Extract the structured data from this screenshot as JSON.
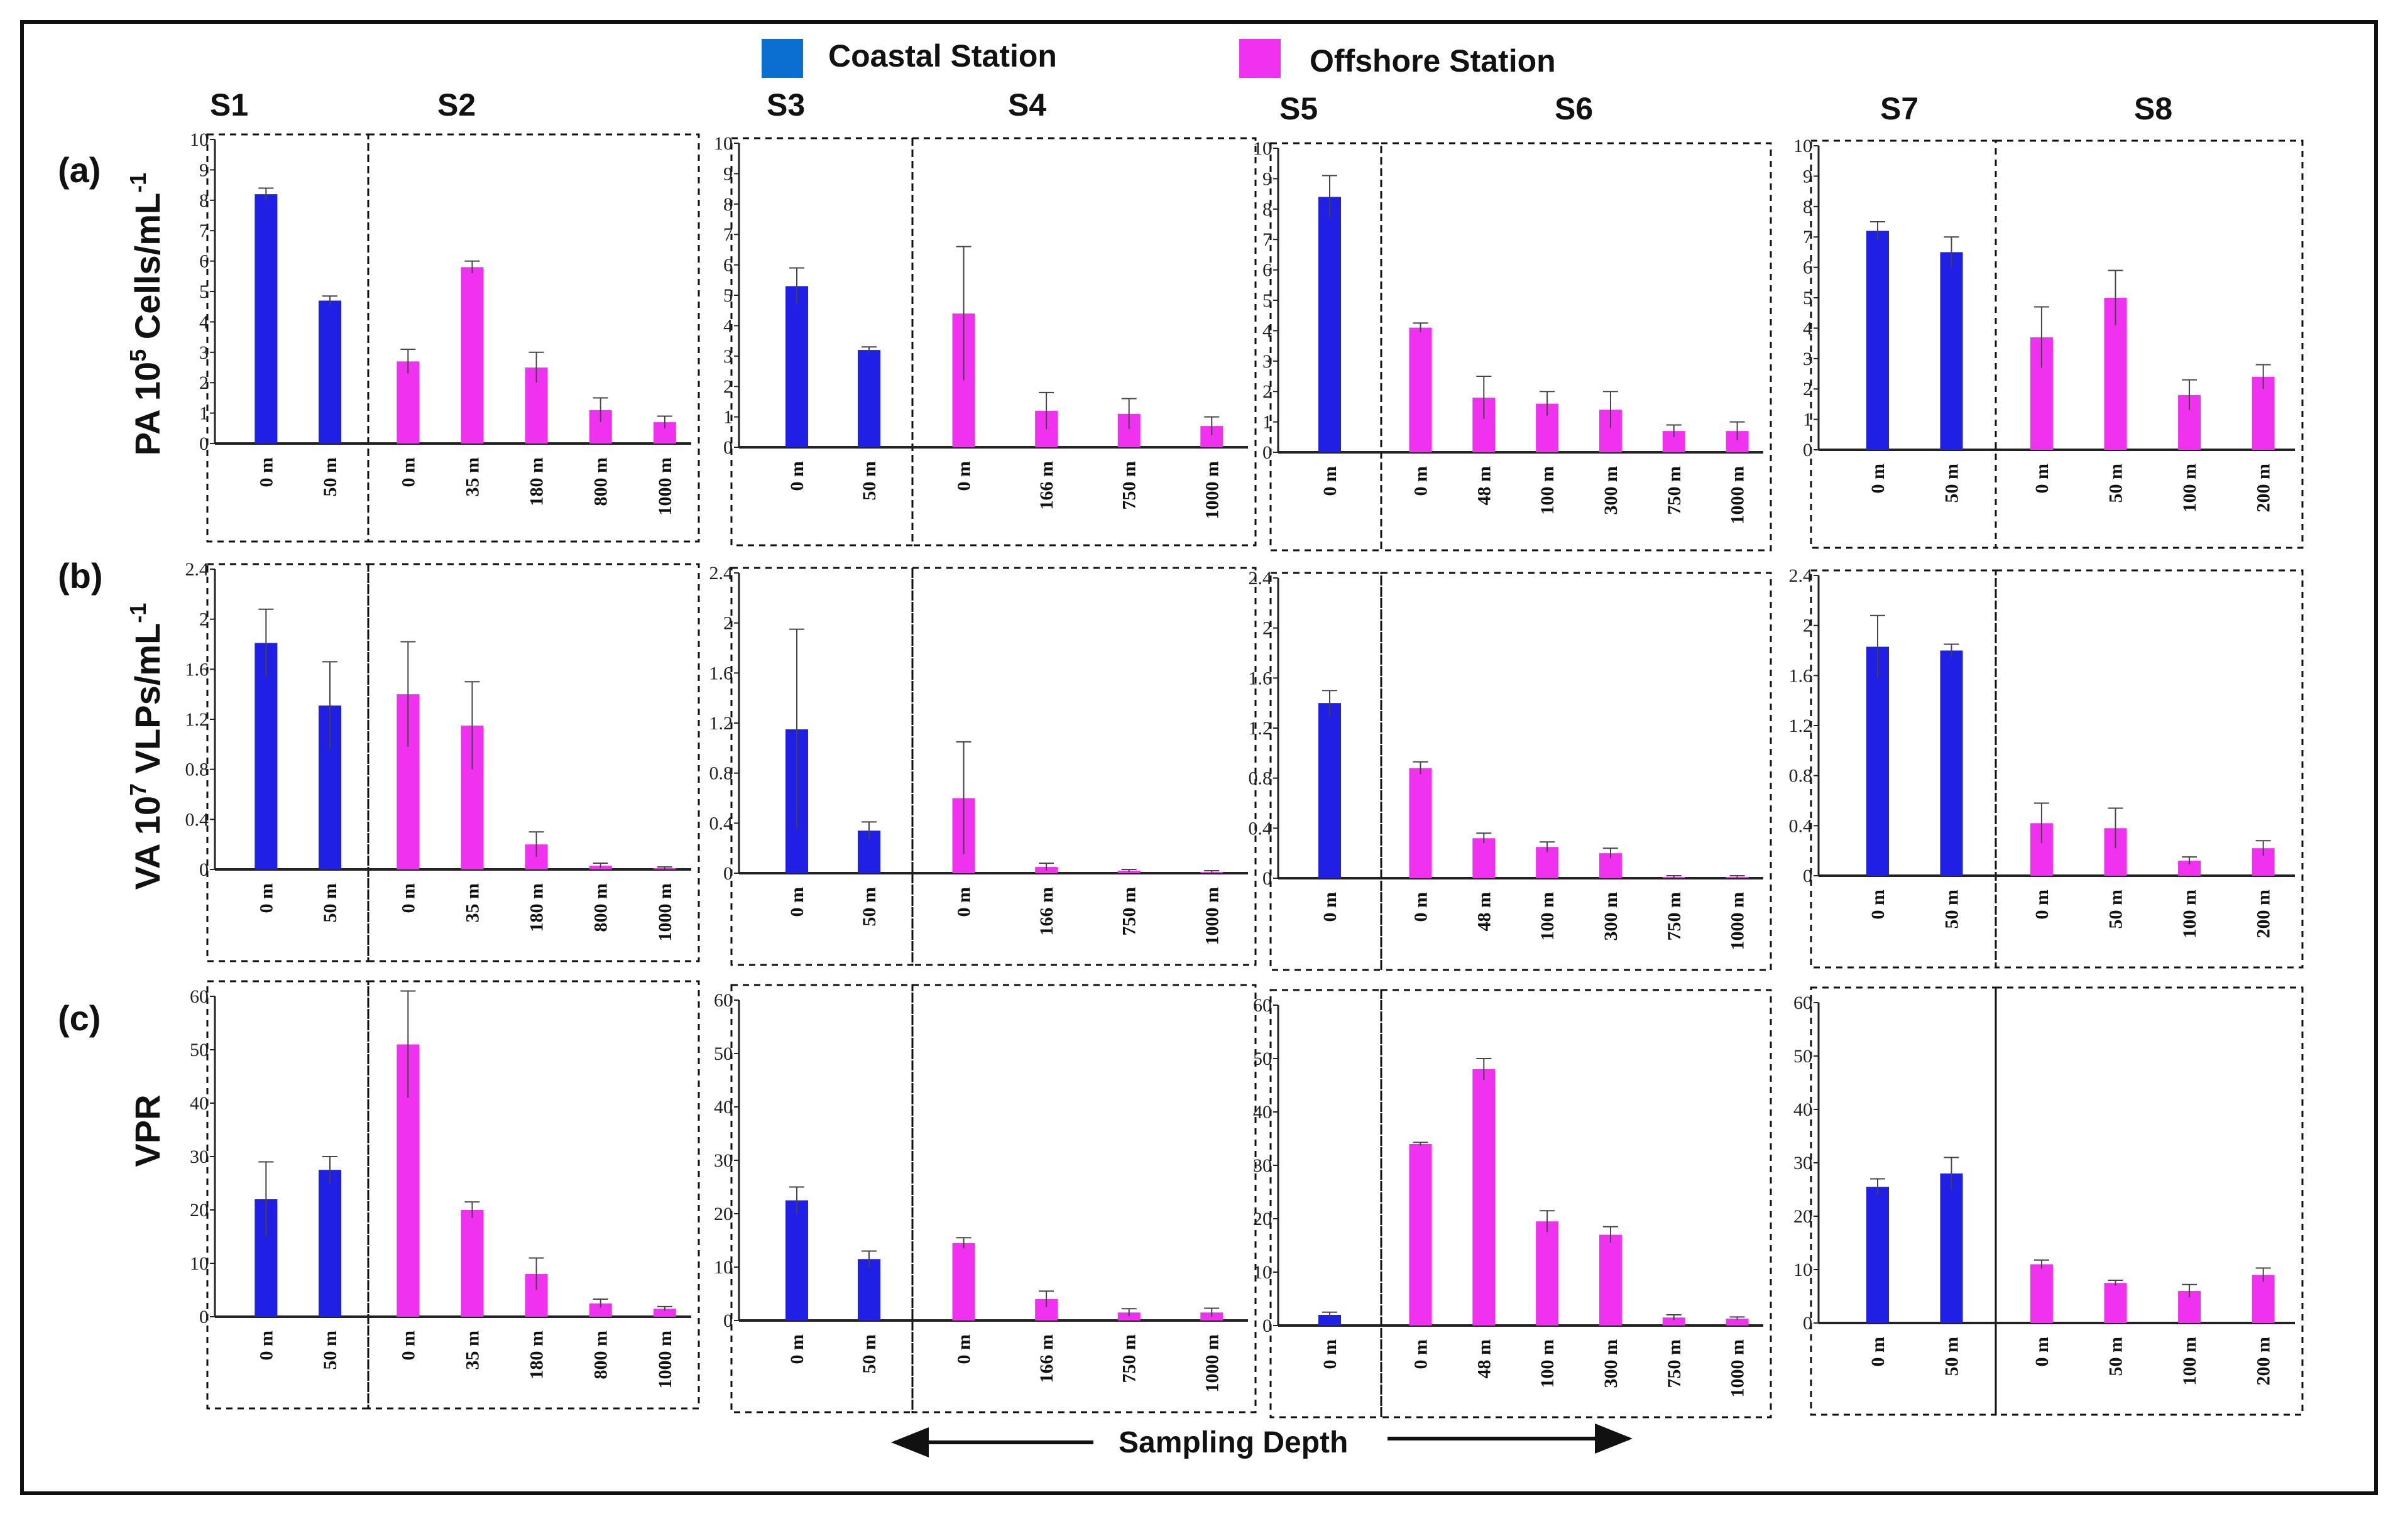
{
  "legend": [
    {
      "label": "Coastal Station",
      "color": "#0a6fd1"
    },
    {
      "label": "Offshore Station",
      "color": "#f032f0"
    }
  ],
  "colors": {
    "coastal_bar": "#1f1fe6",
    "offshore_bar": "#f032f0",
    "frame": "#111111"
  },
  "stations": [
    "S1",
    "S2",
    "S3",
    "S4",
    "S5",
    "S6",
    "S7",
    "S8"
  ],
  "rows": [
    {
      "label": "(a)",
      "axis_title": "PA 10^5 Cells/mL^-1",
      "axis_title_main": "PA 10",
      "axis_title_sup1": "5",
      "axis_title_mid": " Cells/mL",
      "axis_title_sup2": "-1"
    },
    {
      "label": "(b)",
      "axis_title": "VA 10^7 VLPs/mL^-1",
      "axis_title_main": "VA 10",
      "axis_title_sup1": "7",
      "axis_title_mid": "  VLPs/mL",
      "axis_title_sup2": "-1"
    },
    {
      "label": "(c)",
      "axis_title": "VPR"
    }
  ],
  "x_axis_title": "Sampling Depth",
  "chart_data": [
    {
      "type": "bar",
      "row": "(a)",
      "metric": "PA 10^5 Cells/mL^-1",
      "ylim": [
        0,
        10
      ],
      "ticks": [
        "0",
        "1",
        "2",
        "3",
        "4",
        "5",
        "6",
        "7",
        "8",
        "9",
        "10"
      ],
      "tick_labels": [
        "0",
        "1",
        "2",
        "3",
        "4",
        "5",
        "6",
        "7",
        "8",
        "9",
        "10"
      ],
      "groups": [
        {
          "station": "S1",
          "kind": "coastal",
          "categories": [
            "0 m",
            "50 m"
          ],
          "values": [
            8.2,
            4.7
          ],
          "errors": [
            0.2,
            0.15
          ]
        },
        {
          "station": "S2",
          "kind": "offshore",
          "categories": [
            "0 m",
            "35 m",
            "180 m",
            "800 m",
            "1000 m"
          ],
          "values": [
            2.7,
            5.8,
            2.5,
            1.1,
            0.7
          ],
          "errors": [
            0.4,
            0.2,
            0.5,
            0.4,
            0.2
          ]
        },
        {
          "station": "S3",
          "kind": "coastal",
          "categories": [
            "0 m",
            "50 m"
          ],
          "values": [
            5.3,
            3.2
          ],
          "errors": [
            0.6,
            0.1
          ]
        },
        {
          "station": "S4",
          "kind": "offshore",
          "categories": [
            "0 m",
            "166 m",
            "750 m",
            "1000 m"
          ],
          "values": [
            4.4,
            1.2,
            1.1,
            0.7
          ],
          "errors": [
            2.2,
            0.6,
            0.5,
            0.3
          ]
        },
        {
          "station": "S5",
          "kind": "coastal",
          "categories": [
            "0 m"
          ],
          "values": [
            8.4
          ],
          "errors": [
            0.7
          ]
        },
        {
          "station": "S6",
          "kind": "offshore",
          "categories": [
            "0 m",
            "48 m",
            "100 m",
            "300 m",
            "750 m",
            "1000 m"
          ],
          "values": [
            4.1,
            1.8,
            1.6,
            1.4,
            0.7,
            0.7
          ],
          "errors": [
            0.15,
            0.7,
            0.4,
            0.6,
            0.2,
            0.3
          ]
        },
        {
          "station": "S7",
          "kind": "coastal",
          "categories": [
            "0 m",
            "50 m"
          ],
          "values": [
            7.2,
            6.5
          ],
          "errors": [
            0.3,
            0.5
          ]
        },
        {
          "station": "S8",
          "kind": "offshore",
          "categories": [
            "0 m",
            "50 m",
            "100 m",
            "200 m"
          ],
          "values": [
            3.7,
            5.0,
            1.8,
            2.4
          ],
          "errors": [
            1.0,
            0.9,
            0.5,
            0.4
          ]
        }
      ]
    },
    {
      "type": "bar",
      "row": "(b)",
      "metric": "VA 10^7 VLPs/mL^-1",
      "ylim": [
        0,
        2.4
      ],
      "ticks": [
        0,
        0.4,
        0.8,
        1.2,
        1.6,
        2,
        2.4
      ],
      "tick_labels": [
        "0",
        "0.4",
        "0.8",
        "1.2",
        "1.6",
        "2",
        "2.4"
      ],
      "groups": [
        {
          "station": "S1",
          "kind": "coastal",
          "categories": [
            "0 m",
            "50 m"
          ],
          "values": [
            1.81,
            1.31
          ],
          "errors": [
            0.27,
            0.35
          ]
        },
        {
          "station": "S2",
          "kind": "offshore",
          "categories": [
            "0 m",
            "35 m",
            "180 m",
            "800 m",
            "1000 m"
          ],
          "values": [
            1.4,
            1.15,
            0.2,
            0.03,
            0.01
          ],
          "errors": [
            0.42,
            0.35,
            0.1,
            0.02,
            0.01
          ]
        },
        {
          "station": "S3",
          "kind": "coastal",
          "categories": [
            "0 m",
            "50 m"
          ],
          "values": [
            1.15,
            0.34
          ],
          "errors": [
            0.8,
            0.07
          ]
        },
        {
          "station": "S4",
          "kind": "offshore",
          "categories": [
            "0 m",
            "166 m",
            "750 m",
            "1000 m"
          ],
          "values": [
            0.6,
            0.05,
            0.02,
            0.01
          ],
          "errors": [
            0.45,
            0.03,
            0.01,
            0.01
          ]
        },
        {
          "station": "S5",
          "kind": "coastal",
          "categories": [
            "0 m"
          ],
          "values": [
            1.4
          ],
          "errors": [
            0.1
          ]
        },
        {
          "station": "S6",
          "kind": "offshore",
          "categories": [
            "0 m",
            "48 m",
            "100 m",
            "300 m",
            "750 m",
            "1000 m"
          ],
          "values": [
            0.88,
            0.32,
            0.25,
            0.2,
            0.01,
            0.01
          ],
          "errors": [
            0.05,
            0.04,
            0.04,
            0.04,
            0.01,
            0.01
          ]
        },
        {
          "station": "S7",
          "kind": "coastal",
          "categories": [
            "0 m",
            "50 m"
          ],
          "values": [
            1.83,
            1.8
          ],
          "errors": [
            0.25,
            0.05
          ]
        },
        {
          "station": "S8",
          "kind": "offshore",
          "categories": [
            "0 m",
            "50 m",
            "100 m",
            "200 m"
          ],
          "values": [
            0.42,
            0.38,
            0.12,
            0.22
          ],
          "errors": [
            0.16,
            0.16,
            0.03,
            0.06
          ]
        }
      ]
    },
    {
      "type": "bar",
      "row": "(c)",
      "metric": "VPR",
      "ylim": [
        0,
        60
      ],
      "ticks": [
        0,
        10,
        20,
        30,
        40,
        50,
        60
      ],
      "tick_labels": [
        "0",
        "10",
        "20",
        "30",
        "40",
        "50",
        "60"
      ],
      "groups": [
        {
          "station": "S1",
          "kind": "coastal",
          "categories": [
            "0 m",
            "50 m"
          ],
          "values": [
            22,
            27.5
          ],
          "errors": [
            7,
            2.5
          ]
        },
        {
          "station": "S2",
          "kind": "offshore",
          "categories": [
            "0 m",
            "35 m",
            "180 m",
            "800 m",
            "1000 m"
          ],
          "values": [
            51,
            20,
            8,
            2.5,
            1.5
          ],
          "errors": [
            10,
            1.5,
            3,
            0.8,
            0.4
          ]
        },
        {
          "station": "S3",
          "kind": "coastal",
          "categories": [
            "0 m",
            "50 m"
          ],
          "values": [
            22.5,
            11.5
          ],
          "errors": [
            2.5,
            1.5
          ]
        },
        {
          "station": "S4",
          "kind": "offshore",
          "categories": [
            "0 m",
            "166 m",
            "750 m",
            "1000 m"
          ],
          "values": [
            14.5,
            4,
            1.5,
            1.5
          ],
          "errors": [
            1,
            1.5,
            0.7,
            0.8
          ]
        },
        {
          "station": "S5",
          "kind": "coastal",
          "categories": [
            "0 m"
          ],
          "values": [
            2
          ],
          "errors": [
            0.5
          ]
        },
        {
          "station": "S6",
          "kind": "offshore",
          "categories": [
            "0 m",
            "48 m",
            "100 m",
            "300 m",
            "750 m",
            "1000 m"
          ],
          "values": [
            34,
            48,
            19.5,
            17,
            1.5,
            1.3
          ],
          "errors": [
            0.3,
            2,
            2,
            1.5,
            0.5,
            0.3
          ]
        },
        {
          "station": "S7",
          "kind": "coastal",
          "categories": [
            "0 m",
            "50 m"
          ],
          "values": [
            25.5,
            28
          ],
          "errors": [
            1.5,
            3
          ]
        },
        {
          "station": "S8",
          "kind": "offshore",
          "categories": [
            "0 m",
            "50 m",
            "100 m",
            "200 m"
          ],
          "values": [
            11,
            7.5,
            6,
            9
          ],
          "errors": [
            0.8,
            0.5,
            1.2,
            1.3
          ]
        }
      ]
    }
  ]
}
